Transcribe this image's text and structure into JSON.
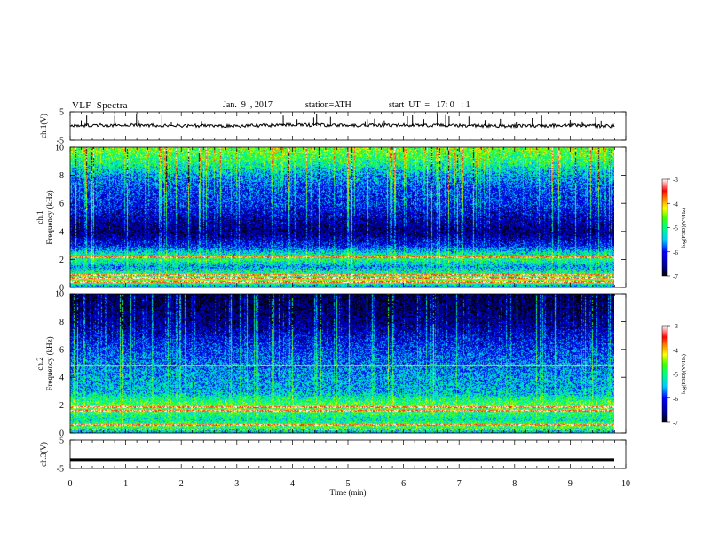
{
  "header": {
    "title": "VLF  Spectra",
    "date": "Jan.  9  , 2017",
    "station": "station=ATH",
    "start": "start  UT  =   17: 0   : 1"
  },
  "chart_data": [
    {
      "type": "line",
      "panel": "ch1-waveform",
      "ylabel": "ch.1(V)",
      "ylim": [
        -5,
        5
      ],
      "yticks": [
        "5",
        "-5"
      ],
      "x": [
        0,
        1,
        2,
        3,
        4,
        5,
        6,
        7,
        8,
        9,
        9.8
      ],
      "values": [
        0.2,
        0.3,
        0.1,
        0.0,
        0.4,
        0.2,
        0.3,
        0.1,
        0.0,
        0.2,
        -0.1
      ],
      "style": "noisy black trace with sparse positive spikes"
    },
    {
      "type": "heatmap",
      "panel": "ch1-spectrogram",
      "ylabel": "ch.1\nFrequency  (kHz)",
      "ylim": [
        0,
        10
      ],
      "yticks": [
        "0",
        "2",
        "4",
        "6",
        "8",
        "10"
      ],
      "xlim": [
        0,
        10
      ],
      "data_end_min": 9.8,
      "colorbar": {
        "label": "log(PSD)(V²/Hz)",
        "range": [
          -7,
          -3
        ],
        "ticks": [
          "-3",
          "-4",
          "-5",
          "-6",
          "-7"
        ]
      },
      "mean_level_by_frequency_kHz": [
        [
          0,
          -5.8
        ],
        [
          0.5,
          -4.5
        ],
        [
          1,
          -5.0
        ],
        [
          1.5,
          -5.6
        ],
        [
          2,
          -5.0
        ],
        [
          2.5,
          -5.3
        ],
        [
          3,
          -6.1
        ],
        [
          4,
          -6.7
        ],
        [
          5,
          -6.4
        ],
        [
          6,
          -6.1
        ],
        [
          7,
          -6.0
        ],
        [
          8,
          -5.6
        ],
        [
          9,
          -5.0
        ],
        [
          10,
          -4.6
        ]
      ],
      "narrowband_lines_kHz": [
        0.4,
        0.7,
        0.9,
        1.2,
        2.2
      ]
    },
    {
      "type": "heatmap",
      "panel": "ch2-spectrogram",
      "ylabel": "ch.2\nFrequency  (kHz)",
      "ylim": [
        0,
        10
      ],
      "yticks": [
        "0",
        "2",
        "4",
        "6",
        "8",
        "10"
      ],
      "xlim": [
        0,
        10
      ],
      "data_end_min": 9.8,
      "colorbar": {
        "label": "log(PSD)(V²/Hz)",
        "range": [
          -7,
          -3
        ],
        "ticks": [
          "-3",
          "-4",
          "-5",
          "-6",
          "-7"
        ]
      },
      "mean_level_by_frequency_kHz": [
        [
          0,
          -5.5
        ],
        [
          0.5,
          -4.8
        ],
        [
          1,
          -5.2
        ],
        [
          1.5,
          -4.9
        ],
        [
          2,
          -4.7
        ],
        [
          2.5,
          -5.1
        ],
        [
          3,
          -5.5
        ],
        [
          4,
          -5.6
        ],
        [
          5,
          -5.8
        ],
        [
          6,
          -6.0
        ],
        [
          7,
          -6.3
        ],
        [
          8,
          -6.6
        ],
        [
          9,
          -6.8
        ],
        [
          10,
          -6.9
        ]
      ],
      "narrowband_lines_kHz": [
        0.3,
        0.6,
        1.6,
        1.9,
        4.9
      ]
    },
    {
      "type": "line",
      "panel": "ch3-waveform",
      "ylabel": "ch.3(V)",
      "ylim": [
        -5,
        5
      ],
      "yticks": [
        "5",
        "-5"
      ],
      "x": [
        0,
        9.8
      ],
      "values": [
        -2,
        -2
      ],
      "style": "flat thick black trace"
    }
  ],
  "xaxis": {
    "label": "Time  (min)",
    "ticks": [
      "0",
      "1",
      "2",
      "3",
      "4",
      "5",
      "6",
      "7",
      "8",
      "9",
      "10"
    ],
    "range": [
      0,
      10
    ]
  }
}
